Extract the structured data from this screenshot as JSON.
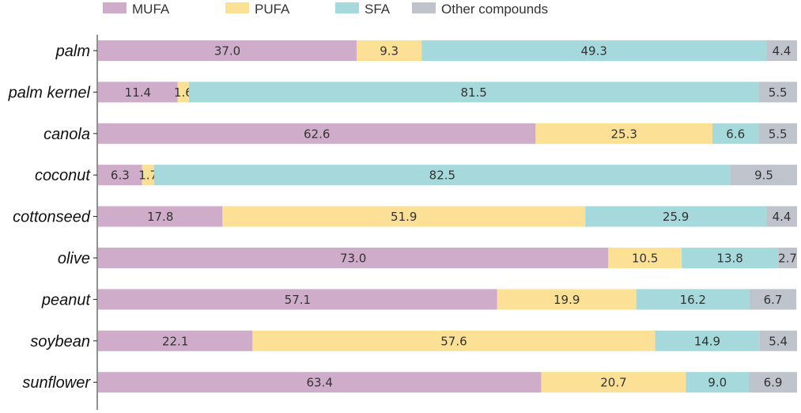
{
  "chart_data": {
    "type": "bar",
    "orientation": "horizontal",
    "stacked": true,
    "title": "",
    "xlabel": "",
    "ylabel": "",
    "xlim": [
      0,
      100
    ],
    "grid": false,
    "legend_position": "top",
    "categories": [
      "palm",
      "palm kernel",
      "canola",
      "coconut",
      "cottonseed",
      "olive",
      "peanut",
      "soybean",
      "sunflower"
    ],
    "series": [
      {
        "name": "MUFA",
        "color": "#cfadca",
        "values": [
          37.0,
          11.4,
          62.6,
          6.3,
          17.8,
          73.0,
          57.1,
          22.1,
          63.4
        ]
      },
      {
        "name": "PUFA",
        "color": "#fbe095",
        "values": [
          9.3,
          1.6,
          25.3,
          1.7,
          51.9,
          10.5,
          19.9,
          57.6,
          20.7
        ]
      },
      {
        "name": "SFA",
        "color": "#a5d9dc",
        "values": [
          49.3,
          81.5,
          6.6,
          82.5,
          25.9,
          13.8,
          16.2,
          14.9,
          9.0
        ]
      },
      {
        "name": "Other compounds",
        "color": "#bfc3cc",
        "values": [
          4.4,
          5.5,
          5.5,
          9.5,
          4.4,
          2.7,
          6.7,
          5.4,
          6.9
        ]
      }
    ]
  }
}
